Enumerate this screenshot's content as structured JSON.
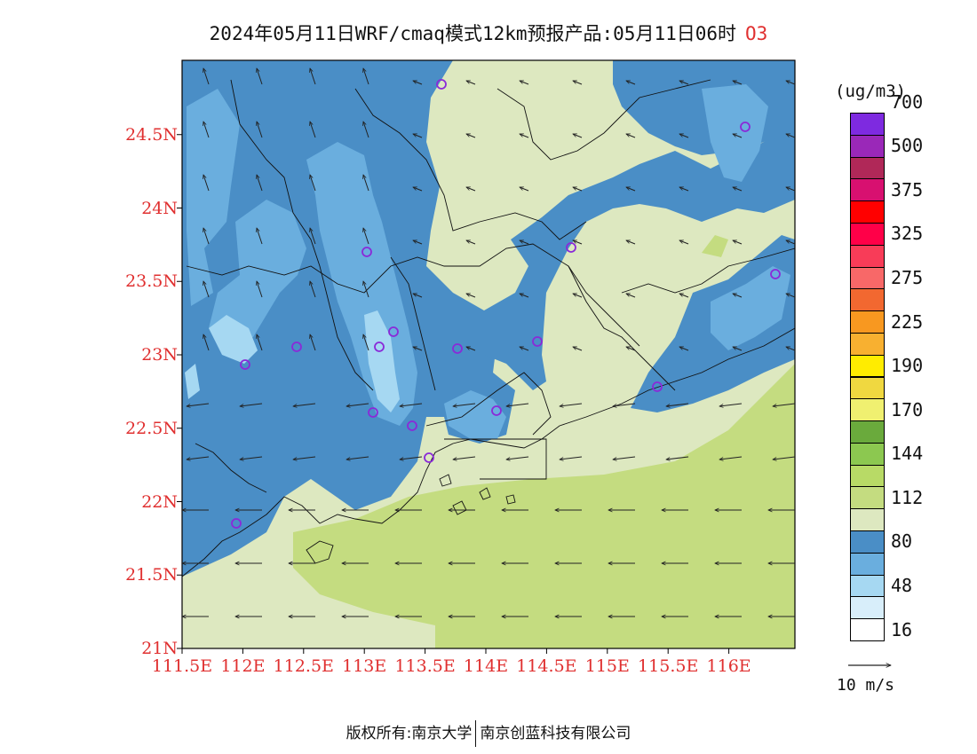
{
  "title": {
    "text": "2024年05月11日WRF/cmaq模式12km预报产品:05月11日06时",
    "species": "O3"
  },
  "map": {
    "lat_ticks": [
      "21N",
      "21.5N",
      "22N",
      "22.5N",
      "23N",
      "23.5N",
      "24N",
      "24.5N"
    ],
    "lon_ticks": [
      "111.5E",
      "112E",
      "112.5E",
      "113E",
      "113.5E",
      "114E",
      "114.5E",
      "115E",
      "115.5E",
      "116E"
    ]
  },
  "colorbar": {
    "units": "(ug/m3)",
    "labels": [
      "16",
      "48",
      "80",
      "112",
      "144",
      "170",
      "190",
      "225",
      "275",
      "325",
      "375",
      "500",
      "700"
    ],
    "colors": [
      "#ffffff",
      "#d8eefa",
      "#a6d8f2",
      "#6aaede",
      "#4a8ec6",
      "#dde8c0",
      "#c4dc80",
      "#b8da66",
      "#8cc850",
      "#6aaa3c",
      "#f0f070",
      "#f0d840",
      "#ffec00",
      "#f8b030",
      "#f89820",
      "#f26830",
      "#f86868",
      "#f83c58",
      "#ff0048",
      "#ff0000",
      "#d81070",
      "#b02858",
      "#9a28b8",
      "#7e2ae0"
    ]
  },
  "reference_vector": {
    "label": "10 m/s"
  },
  "footer": {
    "left": "版权所有:南京大学",
    "right": "南京创蓝科技有限公司"
  }
}
